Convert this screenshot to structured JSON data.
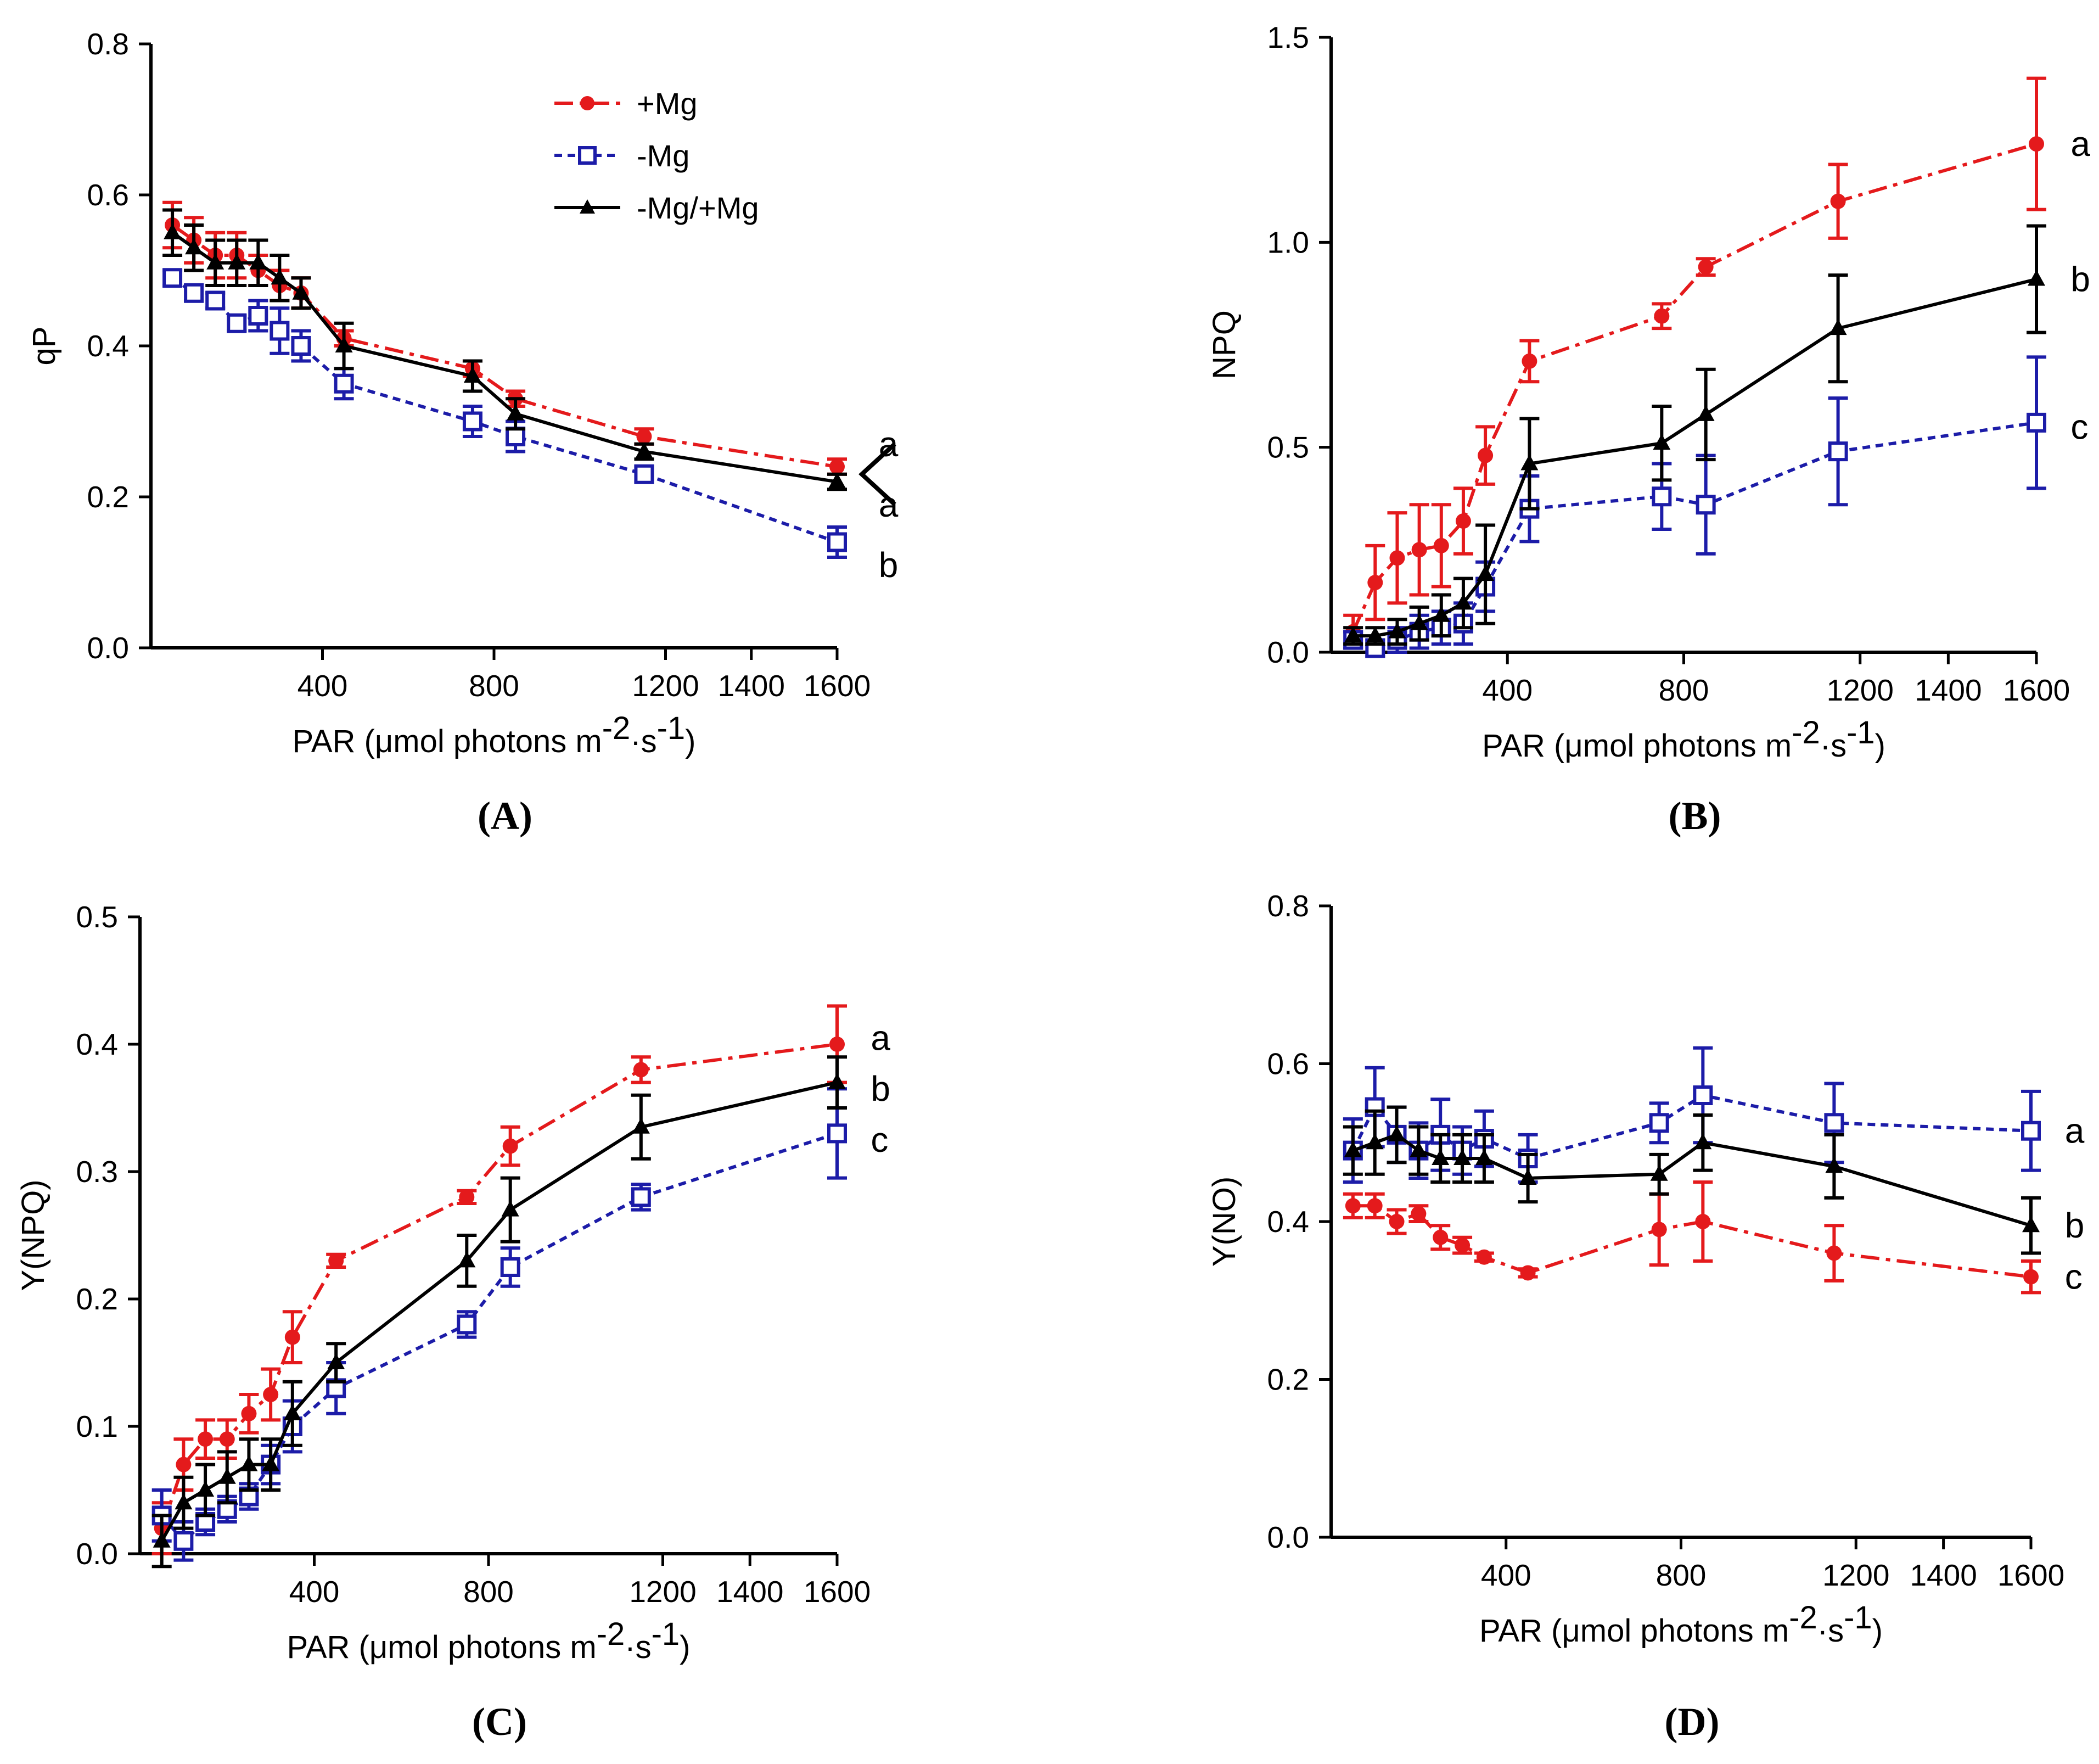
{
  "figure": {
    "series_styles": {
      "plus_mg": {
        "color": "#e41a1c",
        "marker": "circle",
        "dash": "dashdot"
      },
      "minus_mg": {
        "color": "#1c1ca8",
        "marker": "open-square",
        "dash": "dotted"
      },
      "recover": {
        "color": "#000000",
        "marker": "triangle",
        "dash": "solid"
      }
    }
  },
  "chart_data": [
    {
      "panel": "(A)",
      "type": "line",
      "xlabel_prefix": "PAR (μmol photons m",
      "xlabel_sup1": "-2",
      "xlabel_mid": "·s",
      "xlabel_sup2": "-1",
      "xlabel_suffix": ")",
      "ylabel": "qP",
      "xlim": [
        0,
        1600
      ],
      "ylim": [
        0,
        0.8
      ],
      "xticks": [
        400,
        800,
        1200,
        1400,
        1600
      ],
      "yticks": [
        0.0,
        0.2,
        0.4,
        0.6,
        0.8
      ],
      "ytick_labels": [
        "0.0",
        "0.2",
        "0.4",
        "0.6",
        "0.8"
      ],
      "x": [
        50,
        100,
        150,
        200,
        250,
        300,
        350,
        450,
        750,
        850,
        1150,
        1600
      ],
      "legend": {
        "position": "top-center",
        "entries": [
          "+Mg",
          "-Mg",
          "-Mg/+Mg"
        ]
      },
      "series": [
        {
          "name": "+Mg",
          "style": "plus_mg",
          "values": [
            0.56,
            0.54,
            0.52,
            0.52,
            0.5,
            0.48,
            0.47,
            0.41,
            0.37,
            0.33,
            0.28,
            0.24
          ],
          "errors": [
            0.03,
            0.03,
            0.03,
            0.03,
            0.02,
            0.02,
            0.02,
            0.01,
            0.01,
            0.01,
            0.01,
            0.01
          ]
        },
        {
          "name": "-Mg",
          "style": "minus_mg",
          "values": [
            0.49,
            0.47,
            0.46,
            0.43,
            0.44,
            0.42,
            0.4,
            0.35,
            0.3,
            0.28,
            0.23,
            0.14
          ],
          "errors": [
            0.01,
            0.01,
            0.01,
            0.01,
            0.02,
            0.03,
            0.02,
            0.02,
            0.02,
            0.02,
            0.01,
            0.02
          ]
        },
        {
          "name": "-Mg/+Mg",
          "style": "recover",
          "values": [
            0.55,
            0.53,
            0.51,
            0.51,
            0.51,
            0.49,
            0.47,
            0.4,
            0.36,
            0.31,
            0.26,
            0.22
          ],
          "errors": [
            0.03,
            0.03,
            0.03,
            0.03,
            0.03,
            0.03,
            0.02,
            0.03,
            0.02,
            0.02,
            0.01,
            0.01
          ]
        }
      ],
      "annotations": [
        {
          "text": "a",
          "x": 1720,
          "y": 0.27
        },
        {
          "text": "a",
          "x": 1720,
          "y": 0.19
        },
        {
          "text": "b",
          "x": 1720,
          "y": 0.11
        }
      ],
      "bracket": true
    },
    {
      "panel": "(B)",
      "type": "line",
      "xlabel_prefix": "PAR (μmol photons m",
      "xlabel_sup1": "-2",
      "xlabel_mid": "·s",
      "xlabel_sup2": "-1",
      "xlabel_suffix": ")",
      "ylabel": "NPQ",
      "xlim": [
        0,
        1600
      ],
      "ylim": [
        0,
        1.5
      ],
      "xticks": [
        400,
        800,
        1200,
        1400,
        1600
      ],
      "yticks": [
        0.0,
        0.5,
        1.0,
        1.5
      ],
      "ytick_labels": [
        "0.0",
        "0.5",
        "1.0",
        "1.5"
      ],
      "x": [
        50,
        100,
        150,
        200,
        250,
        300,
        350,
        450,
        750,
        850,
        1150,
        1600
      ],
      "series": [
        {
          "name": "+Mg",
          "style": "plus_mg",
          "values": [
            0.05,
            0.17,
            0.23,
            0.25,
            0.26,
            0.32,
            0.48,
            0.71,
            0.82,
            0.94,
            1.1,
            1.24
          ],
          "errors": [
            0.04,
            0.09,
            0.11,
            0.11,
            0.1,
            0.08,
            0.07,
            0.05,
            0.03,
            0.02,
            0.09,
            0.16
          ]
        },
        {
          "name": "-Mg",
          "style": "minus_mg",
          "values": [
            0.03,
            0.01,
            0.03,
            0.05,
            0.06,
            0.07,
            0.16,
            0.35,
            0.38,
            0.36,
            0.49,
            0.56
          ],
          "errors": [
            0.02,
            0.02,
            0.03,
            0.04,
            0.04,
            0.05,
            0.06,
            0.08,
            0.08,
            0.12,
            0.13,
            0.16
          ]
        },
        {
          "name": "-Mg/+Mg",
          "style": "recover",
          "values": [
            0.04,
            0.04,
            0.05,
            0.07,
            0.09,
            0.12,
            0.19,
            0.46,
            0.51,
            0.58,
            0.79,
            0.91
          ],
          "errors": [
            0.02,
            0.02,
            0.03,
            0.04,
            0.05,
            0.06,
            0.12,
            0.11,
            0.09,
            0.11,
            0.13,
            0.13
          ]
        }
      ],
      "annotations": [
        {
          "text": "a",
          "x": 1700,
          "y": 1.24
        },
        {
          "text": "b",
          "x": 1700,
          "y": 0.91
        },
        {
          "text": "c",
          "x": 1700,
          "y": 0.55
        }
      ]
    },
    {
      "panel": "(C)",
      "type": "line",
      "xlabel_prefix": "PAR (μmol photons m",
      "xlabel_sup1": "-2",
      "xlabel_mid": "·s",
      "xlabel_sup2": "-1",
      "xlabel_suffix": ")",
      "ylabel": "Y(NPQ)",
      "xlim": [
        0,
        1600
      ],
      "ylim": [
        0,
        0.5
      ],
      "xticks": [
        400,
        800,
        1200,
        1400,
        1600
      ],
      "yticks": [
        0.0,
        0.1,
        0.2,
        0.3,
        0.4,
        0.5
      ],
      "ytick_labels": [
        "0.0",
        "0.1",
        "0.2",
        "0.3",
        "0.4",
        "0.5"
      ],
      "x": [
        50,
        100,
        150,
        200,
        250,
        300,
        350,
        450,
        750,
        850,
        1150,
        1600
      ],
      "series": [
        {
          "name": "+Mg",
          "style": "plus_mg",
          "values": [
            0.02,
            0.07,
            0.09,
            0.09,
            0.11,
            0.125,
            0.17,
            0.23,
            0.28,
            0.32,
            0.38,
            0.4
          ],
          "errors": [
            0.02,
            0.02,
            0.015,
            0.015,
            0.015,
            0.02,
            0.02,
            0.005,
            0.005,
            0.015,
            0.01,
            0.03
          ]
        },
        {
          "name": "-Mg",
          "style": "minus_mg",
          "values": [
            0.03,
            0.01,
            0.025,
            0.035,
            0.045,
            0.07,
            0.1,
            0.13,
            0.18,
            0.225,
            0.28,
            0.33
          ],
          "errors": [
            0.02,
            0.015,
            0.01,
            0.01,
            0.01,
            0.015,
            0.02,
            0.02,
            0.01,
            0.015,
            0.01,
            0.035
          ]
        },
        {
          "name": "-Mg/+Mg",
          "style": "recover",
          "values": [
            0.01,
            0.04,
            0.05,
            0.06,
            0.07,
            0.07,
            0.11,
            0.15,
            0.23,
            0.27,
            0.335,
            0.37
          ],
          "errors": [
            0.02,
            0.02,
            0.02,
            0.02,
            0.02,
            0.02,
            0.025,
            0.015,
            0.02,
            0.025,
            0.025,
            0.02
          ]
        }
      ],
      "annotations": [
        {
          "text": "a",
          "x": 1700,
          "y": 0.405
        },
        {
          "text": "b",
          "x": 1700,
          "y": 0.365
        },
        {
          "text": "c",
          "x": 1700,
          "y": 0.325
        }
      ]
    },
    {
      "panel": "(D)",
      "type": "line",
      "xlabel_prefix": "PAR (μmol photons m",
      "xlabel_sup1": "-2",
      "xlabel_mid": "·s",
      "xlabel_sup2": "-1",
      "xlabel_suffix": ")",
      "ylabel": "Y(NO)",
      "xlim": [
        0,
        1600
      ],
      "ylim": [
        0,
        0.8
      ],
      "xticks": [
        400,
        800,
        1200,
        1400,
        1600
      ],
      "yticks": [
        0.0,
        0.2,
        0.4,
        0.6,
        0.8
      ],
      "ytick_labels": [
        "0.0",
        "0.2",
        "0.4",
        "0.6",
        "0.8"
      ],
      "x": [
        50,
        100,
        150,
        200,
        250,
        300,
        350,
        450,
        750,
        850,
        1150,
        1600
      ],
      "series": [
        {
          "name": "+Mg",
          "style": "plus_mg",
          "values": [
            0.42,
            0.42,
            0.4,
            0.41,
            0.38,
            0.37,
            0.355,
            0.335,
            0.39,
            0.4,
            0.36,
            0.33
          ],
          "errors": [
            0.015,
            0.015,
            0.015,
            0.01,
            0.015,
            0.01,
            0.005,
            0.005,
            0.045,
            0.05,
            0.035,
            0.02
          ]
        },
        {
          "name": "-Mg",
          "style": "minus_mg",
          "values": [
            0.49,
            0.545,
            0.51,
            0.49,
            0.51,
            0.49,
            0.505,
            0.48,
            0.525,
            0.56,
            0.525,
            0.515
          ],
          "errors": [
            0.04,
            0.05,
            0.035,
            0.035,
            0.045,
            0.03,
            0.035,
            0.03,
            0.025,
            0.06,
            0.05,
            0.05
          ]
        },
        {
          "name": "-Mg/+Mg",
          "style": "recover",
          "values": [
            0.49,
            0.5,
            0.51,
            0.49,
            0.48,
            0.48,
            0.48,
            0.455,
            0.46,
            0.5,
            0.47,
            0.395
          ],
          "errors": [
            0.03,
            0.04,
            0.035,
            0.03,
            0.03,
            0.03,
            0.03,
            0.03,
            0.025,
            0.035,
            0.04,
            0.035
          ]
        }
      ],
      "annotations": [
        {
          "text": "a",
          "x": 1700,
          "y": 0.515
        },
        {
          "text": "b",
          "x": 1700,
          "y": 0.395
        },
        {
          "text": "c",
          "x": 1700,
          "y": 0.33
        }
      ]
    }
  ]
}
